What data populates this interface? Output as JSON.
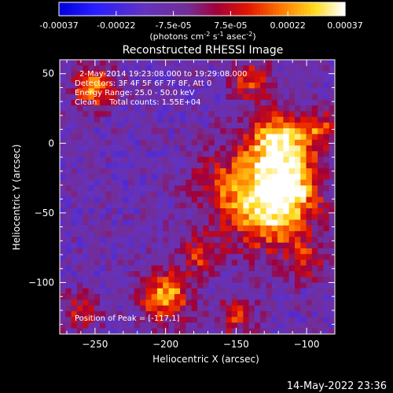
{
  "colorbar": {
    "tick_labels": [
      "-0.00037",
      "-0.00022",
      "-7.5e-05",
      "7.5e-05",
      "0.00022",
      "0.00037"
    ],
    "range": [
      -0.00037,
      0.00037
    ],
    "unit_label": {
      "prefix": "(photons cm",
      "exp1": "-2",
      "mid1": " s",
      "exp2": "-1",
      "mid2": " asec",
      "exp3": "-2",
      "suffix": ")"
    }
  },
  "chart_data": {
    "type": "heatmap",
    "title": "Reconstructed RHESSI Image",
    "xlabel": "Heliocentric X (arcsec)",
    "ylabel": "Heliocentric Y (arcsec)",
    "xlim": [
      -275,
      -80
    ],
    "ylim": [
      -137,
      60
    ],
    "x_ticks": [
      -250,
      -200,
      -150,
      -100
    ],
    "y_ticks": [
      50,
      0,
      -50,
      -100
    ],
    "colormap": "red-temperature",
    "annotations": [
      "2-May-2014 19:23:08.000 to 19:29:08.000",
      "Detectors: 3F 4F 5F 6F 7F 8F, Att 0",
      "Energy Range: 25.0 - 50.0 keV",
      "Clean     Total counts: 1.55E+04"
    ],
    "peak_label": "Position of Peak = [-117,1]",
    "peak": [
      -117,
      1
    ],
    "grid": false
  },
  "footer": {
    "timestamp": "14-May-2022 23:36"
  },
  "colors": {
    "background": "#000000",
    "text": "#ffffff"
  }
}
